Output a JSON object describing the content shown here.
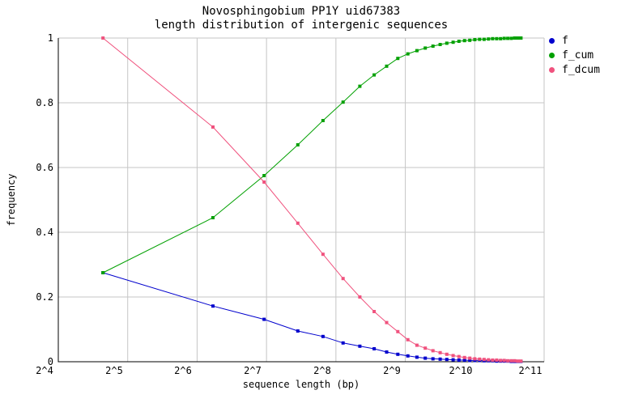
{
  "chart_data": {
    "type": "line",
    "title": "Novosphingobium PP1Y uid67383",
    "subtitle": "length distribution of intergenic sequences",
    "xlabel": "sequence length (bp)",
    "ylabel": "frequency",
    "x_scale": "log2",
    "x_tick_exponents": [
      4,
      5,
      6,
      7,
      8,
      9,
      10,
      11
    ],
    "x_tick_labels": [
      "2^4",
      "2^5",
      "2^6",
      "2^7",
      "2^8",
      "2^9",
      "2^10",
      "2^11"
    ],
    "y_ticks": [
      0,
      0.2,
      0.4,
      0.6,
      0.8,
      1
    ],
    "y_tick_labels": [
      "0",
      "0.2",
      "0.4",
      "0.6",
      "0.8",
      "1"
    ],
    "xlim_exponents": [
      4,
      11
    ],
    "ylim": [
      0,
      1
    ],
    "grid": true,
    "legend_position": "top-right-outside",
    "colors": {
      "grid": "#c6c6c6",
      "axis": "#000000",
      "background": "#ffffff"
    },
    "lengths": [
      25,
      75,
      125,
      175,
      225,
      275,
      325,
      375,
      425,
      475,
      525,
      575,
      625,
      675,
      725,
      775,
      825,
      875,
      925,
      975,
      1025,
      1075,
      1125,
      1175,
      1225,
      1275,
      1325,
      1375,
      1425,
      1475,
      1525,
      1575,
      1625
    ],
    "series": [
      {
        "name": "f",
        "color": "#0000cd",
        "values": [
          0.275,
          0.172,
          0.131,
          0.095,
          0.078,
          0.058,
          0.048,
          0.04,
          0.03,
          0.023,
          0.018,
          0.014,
          0.011,
          0.009,
          0.008,
          0.007,
          0.006,
          0.005,
          0.005,
          0.004,
          0.004,
          0.004,
          0.003,
          0.003,
          0.003,
          0.002,
          0.002,
          0.002,
          0.002,
          0.001,
          0.001,
          0.001,
          0.001
        ]
      },
      {
        "name": "f_cum",
        "color": "#00a000",
        "values": [
          0.275,
          0.445,
          0.575,
          0.67,
          0.745,
          0.802,
          0.851,
          0.886,
          0.913,
          0.937,
          0.951,
          0.961,
          0.969,
          0.975,
          0.98,
          0.984,
          0.987,
          0.99,
          0.992,
          0.993,
          0.995,
          0.996,
          0.996,
          0.997,
          0.998,
          0.998,
          0.998,
          0.999,
          0.999,
          0.999,
          1.0,
          1.0,
          1.0
        ]
      },
      {
        "name": "f_dcum",
        "color": "#f0527e",
        "values": [
          1.0,
          0.725,
          0.555,
          0.428,
          0.332,
          0.257,
          0.2,
          0.155,
          0.121,
          0.093,
          0.068,
          0.051,
          0.042,
          0.034,
          0.028,
          0.023,
          0.019,
          0.016,
          0.013,
          0.011,
          0.009,
          0.008,
          0.007,
          0.006,
          0.005,
          0.005,
          0.004,
          0.004,
          0.003,
          0.003,
          0.003,
          0.002,
          0.002
        ]
      }
    ]
  }
}
